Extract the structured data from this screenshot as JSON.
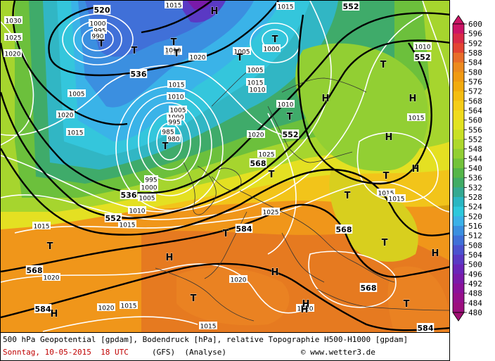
{
  "footer": {
    "line1": "500 hPa Geopotential [gpdam], Bodendruck [hPa], relative Topographie H500-H1000 [gpdam]",
    "date": "Sonntag, 10-05-2015",
    "time": "18 UTC",
    "model": "(GFS)",
    "analysis": "(Analyse)",
    "copyright": "© www.wetter3.de"
  },
  "legend": {
    "levels": [
      "600",
      "596",
      "592",
      "588",
      "584",
      "580",
      "576",
      "572",
      "568",
      "564",
      "560",
      "556",
      "552",
      "548",
      "544",
      "540",
      "536",
      "532",
      "528",
      "524",
      "520",
      "516",
      "512",
      "508",
      "504",
      "500",
      "496",
      "492",
      "488",
      "484",
      "480"
    ],
    "colors": [
      "#cc1466",
      "#d92a48",
      "#e34433",
      "#e86d2a",
      "#ec8a1f",
      "#f09a13",
      "#f2ab0e",
      "#f4bd12",
      "#f5cd18",
      "#f0db1e",
      "#e2e322",
      "#c9e026",
      "#aed82c",
      "#92cf33",
      "#73c33a",
      "#55b649",
      "#40ac66",
      "#33a992",
      "#2ab6c2",
      "#2ec8dc",
      "#3bb1e8",
      "#3b8fe0",
      "#4070d8",
      "#4c52cf",
      "#5a39c4",
      "#6a25b8",
      "#7a1aa9",
      "#8a129a",
      "#96108a",
      "#9c0f7e",
      "#a00f72"
    ]
  },
  "map": {
    "geo_labels": [
      {
        "text": "520"
      },
      {
        "text": "552"
      },
      {
        "text": "552"
      },
      {
        "text": "536"
      },
      {
        "text": "552"
      },
      {
        "text": "568"
      },
      {
        "text": "536"
      },
      {
        "text": "552"
      },
      {
        "text": "584"
      },
      {
        "text": "568"
      },
      {
        "text": "568"
      },
      {
        "text": "568"
      },
      {
        "text": "584"
      },
      {
        "text": "584"
      }
    ],
    "pressure_centers": [
      {
        "letter": "T"
      },
      {
        "letter": "T"
      },
      {
        "letter": "T"
      },
      {
        "letter": "T"
      },
      {
        "letter": "H"
      },
      {
        "letter": "T"
      },
      {
        "letter": "T"
      },
      {
        "letter": "T"
      },
      {
        "letter": "H"
      },
      {
        "letter": "T"
      },
      {
        "letter": "H"
      },
      {
        "letter": "T"
      },
      {
        "letter": "H"
      },
      {
        "letter": "T"
      },
      {
        "letter": "T"
      },
      {
        "letter": "T"
      },
      {
        "letter": "H"
      },
      {
        "letter": "H"
      },
      {
        "letter": "T"
      },
      {
        "letter": "H"
      },
      {
        "letter": "H"
      },
      {
        "letter": "T"
      },
      {
        "letter": "H"
      },
      {
        "letter": "T"
      },
      {
        "letter": "T"
      },
      {
        "letter": "H"
      },
      {
        "letter": "H"
      },
      {
        "letter": "T"
      },
      {
        "letter": "H"
      }
    ],
    "isobar_labels": [
      "1030",
      "1025",
      "1020",
      "1000",
      "995",
      "990",
      "1015",
      "1010",
      "1020",
      "1005",
      "1000",
      "1015",
      "1010",
      "1010",
      "1005",
      "1005",
      "1000",
      "995",
      "985",
      "980",
      "995",
      "1000",
      "1005",
      "1010",
      "1015",
      "1015",
      "1015",
      "1010",
      "1010",
      "1015",
      "1020",
      "1025",
      "1015",
      "1015",
      "1015",
      "1025",
      "1015",
      "1020",
      "1020",
      "1015",
      "1020",
      "1020",
      "1010",
      "1005",
      "1020",
      "1015"
    ]
  }
}
